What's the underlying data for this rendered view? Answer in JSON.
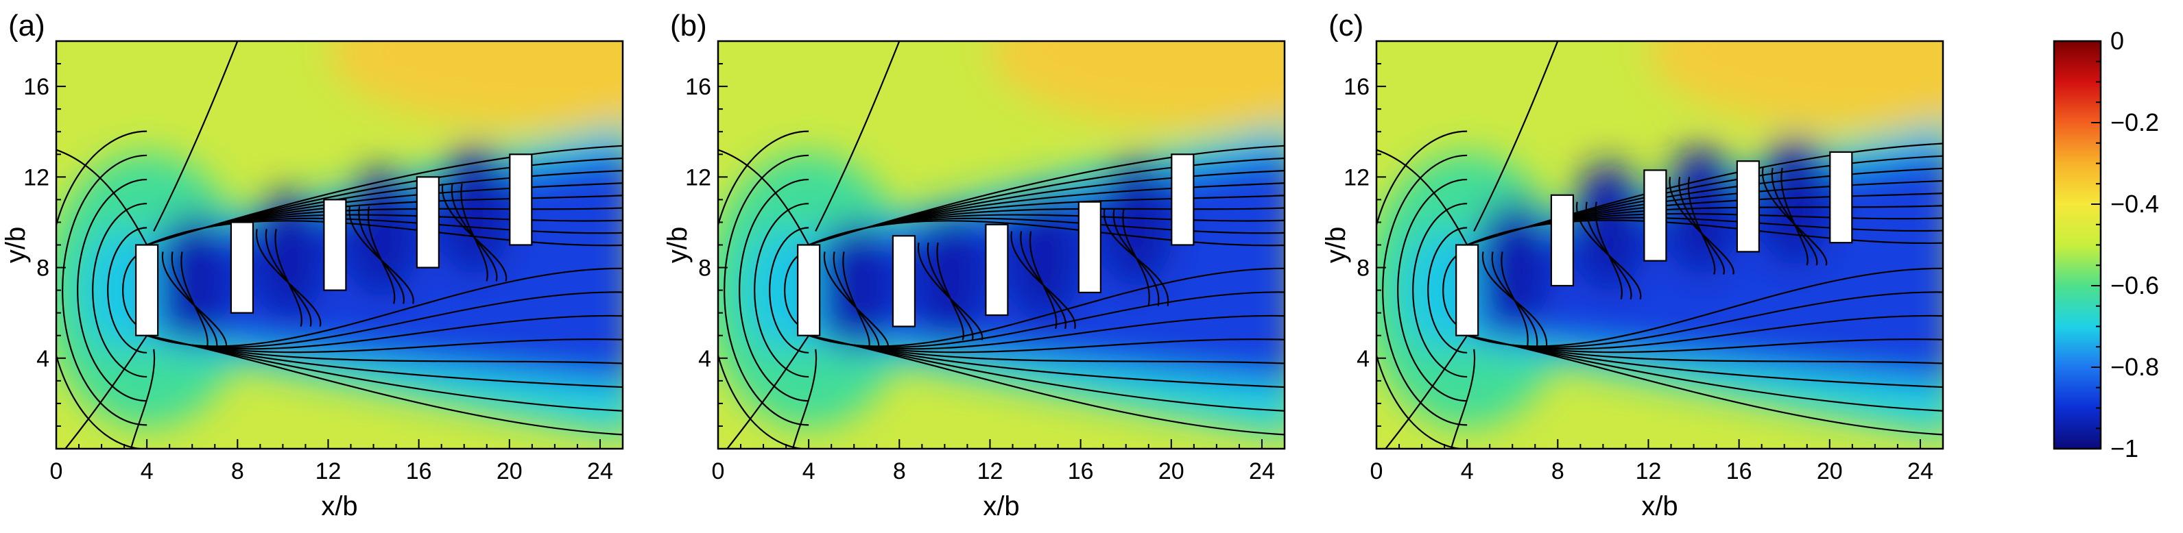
{
  "chart_data": [
    {
      "type": "heatmap",
      "panel_label": "(a)",
      "xlabel": "x/b",
      "ylabel": "y/b",
      "xlim": [
        0,
        25
      ],
      "ylim": [
        0,
        18
      ],
      "xticks": [
        "0",
        "4",
        "8",
        "12",
        "16",
        "20",
        "24"
      ],
      "yticks": [
        "4",
        "8",
        "12",
        "16"
      ],
      "xtick_values": [
        0,
        4,
        8,
        12,
        16,
        20,
        24
      ],
      "ytick_values": [
        4,
        8,
        12,
        16
      ],
      "obstacles": [
        {
          "x": 4.0,
          "y0": 5,
          "y1": 9
        },
        {
          "x": 8.2,
          "y0": 6,
          "y1": 10
        },
        {
          "x": 12.3,
          "y0": 7,
          "y1": 11
        },
        {
          "x": 16.4,
          "y0": 8,
          "y1": 12
        },
        {
          "x": 20.5,
          "y0": 9,
          "y1": 13
        }
      ]
    },
    {
      "type": "heatmap",
      "panel_label": "(b)",
      "xlabel": "x/b",
      "ylabel": "y/b",
      "xlim": [
        0,
        25
      ],
      "ylim": [
        0,
        18
      ],
      "xticks": [
        "0",
        "4",
        "8",
        "12",
        "16",
        "20",
        "24"
      ],
      "yticks": [
        "4",
        "8",
        "12",
        "16"
      ],
      "xtick_values": [
        0,
        4,
        8,
        12,
        16,
        20,
        24
      ],
      "ytick_values": [
        4,
        8,
        12,
        16
      ],
      "obstacles": [
        {
          "x": 4.0,
          "y0": 5,
          "y1": 9
        },
        {
          "x": 8.2,
          "y0": 5.4,
          "y1": 9.4
        },
        {
          "x": 12.3,
          "y0": 5.9,
          "y1": 9.9
        },
        {
          "x": 16.4,
          "y0": 6.9,
          "y1": 10.9
        },
        {
          "x": 20.5,
          "y0": 9,
          "y1": 13
        }
      ]
    },
    {
      "type": "heatmap",
      "panel_label": "(c)",
      "xlabel": "x/b",
      "ylabel": "y/b",
      "xlim": [
        0,
        25
      ],
      "ylim": [
        0,
        18
      ],
      "xticks": [
        "0",
        "4",
        "8",
        "12",
        "16",
        "20",
        "24"
      ],
      "yticks": [
        "4",
        "8",
        "12",
        "16"
      ],
      "xtick_values": [
        0,
        4,
        8,
        12,
        16,
        20,
        24
      ],
      "ytick_values": [
        4,
        8,
        12,
        16
      ],
      "obstacles": [
        {
          "x": 4.0,
          "y0": 5,
          "y1": 9
        },
        {
          "x": 8.2,
          "y0": 7.2,
          "y1": 11.2
        },
        {
          "x": 12.3,
          "y0": 8.3,
          "y1": 12.3
        },
        {
          "x": 16.4,
          "y0": 8.7,
          "y1": 12.7
        },
        {
          "x": 20.5,
          "y0": 9.1,
          "y1": 13.1
        }
      ]
    }
  ],
  "colorbar": {
    "min": -1,
    "max": 0,
    "ticks": [
      "0",
      "−0.2",
      "−0.4",
      "−0.6",
      "−0.8",
      "−1"
    ],
    "tick_values": [
      0,
      -0.2,
      -0.4,
      -0.6,
      -0.8,
      -1
    ],
    "stops": [
      "#0a0a7a",
      "#0c2fd6",
      "#1e78f0",
      "#1ed2e6",
      "#4ee08a",
      "#c8ef3c",
      "#f5e83a",
      "#f7b22a",
      "#f26020",
      "#d41010",
      "#7a0000"
    ]
  }
}
